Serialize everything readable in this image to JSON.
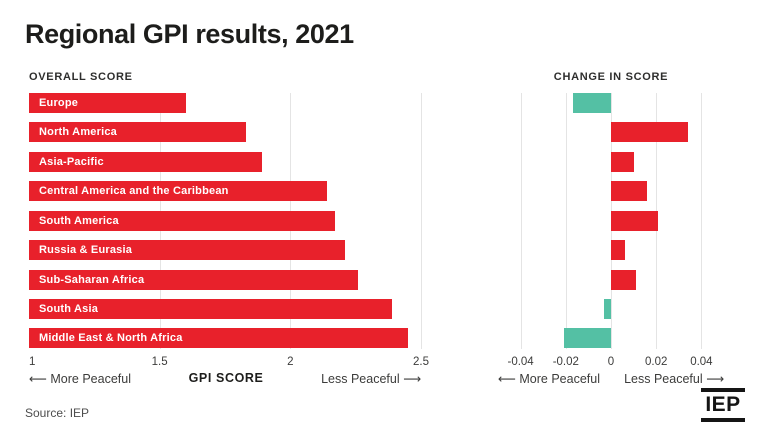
{
  "title": "Regional GPI results, 2021",
  "source": "Source: IEP",
  "logo": "IEP",
  "colors": {
    "bar_red": "#e8212b",
    "bar_teal": "#54c0a4",
    "gridline": "#e4e4e4",
    "title_text": "#1d1d1b",
    "muted_text": "#4d4d4d"
  },
  "chart_data": [
    {
      "type": "bar",
      "orientation": "horizontal",
      "title": "OVERALL SCORE",
      "categories": [
        "Europe",
        "North America",
        "Asia-Pacific",
        "Central America and the Caribbean",
        "South America",
        "Russia & Eurasia",
        "Sub-Saharan Africa",
        "South Asia",
        "Middle East & North Africa"
      ],
      "values": [
        1.6,
        1.83,
        1.89,
        2.14,
        2.17,
        2.21,
        2.26,
        2.39,
        2.45
      ],
      "xlim": [
        1,
        2.5
      ],
      "xticks": [
        1,
        1.5,
        2,
        2.5
      ],
      "xtick_labels": [
        "1",
        "1.5",
        "2",
        "2.5"
      ],
      "gridlines": [
        1.5,
        2,
        2.5
      ],
      "bar_color": "#e8212b",
      "xlabel": "GPI SCORE",
      "left_note": "⟵ More Peaceful",
      "right_note": "Less Peaceful ⟶",
      "grid": true,
      "legend": false
    },
    {
      "type": "bar",
      "orientation": "horizontal",
      "title": "CHANGE IN SCORE",
      "categories": [
        "Europe",
        "North America",
        "Asia-Pacific",
        "Central America and the Caribbean",
        "South America",
        "Russia & Eurasia",
        "Sub-Saharan Africa",
        "South Asia",
        "Middle East & North Africa"
      ],
      "values": [
        -0.017,
        0.034,
        0.01,
        0.016,
        0.021,
        0.006,
        0.011,
        -0.003,
        -0.021
      ],
      "xlim": [
        -0.05,
        0.05
      ],
      "xticks": [
        -0.04,
        -0.02,
        0,
        0.02,
        0.04
      ],
      "xtick_labels": [
        "-0.04",
        "-0.02",
        "0",
        "0.02",
        "0.04"
      ],
      "gridlines": [
        -0.04,
        -0.02,
        0,
        0.02,
        0.04
      ],
      "positive_color": "#e8212b",
      "negative_color": "#54c0a4",
      "left_note": "⟵ More Peaceful",
      "right_note": "Less Peaceful ⟶",
      "grid": true,
      "legend": false
    }
  ]
}
